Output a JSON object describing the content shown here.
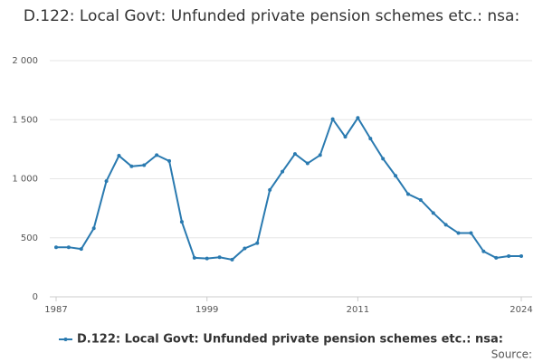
{
  "chart_data": {
    "type": "line",
    "title": "D.122: Local Govt: Unfunded private pension schemes etc.: nsa:",
    "x": [
      1987,
      1988,
      1989,
      1990,
      1991,
      1992,
      1993,
      1994,
      1995,
      1996,
      1997,
      1998,
      1999,
      2000,
      2001,
      2002,
      2003,
      2004,
      2005,
      2006,
      2007,
      2008,
      2009,
      2010,
      2011,
      2012,
      2013,
      2014,
      2015,
      2016,
      2017,
      2018,
      2019,
      2020,
      2021,
      2022,
      2023,
      2024
    ],
    "series": [
      {
        "name": "D.122: Local Govt: Unfunded private pension schemes etc.: nsa:",
        "color": "#2a7ab0",
        "values": [
          420,
          420,
          405,
          580,
          980,
          1195,
          1105,
          1115,
          1200,
          1150,
          635,
          330,
          325,
          335,
          315,
          410,
          455,
          905,
          1060,
          1210,
          1130,
          1200,
          1505,
          1355,
          1515,
          1340,
          1170,
          1025,
          870,
          820,
          710,
          610,
          540,
          540,
          385,
          330,
          345,
          345
        ]
      }
    ],
    "xlim": [
      1987,
      2024
    ],
    "xticks": [
      1987,
      1999,
      2011,
      2024
    ],
    "ylim": [
      0,
      2000
    ],
    "yticks": [
      0,
      500,
      {
        "value": 1000,
        "label": "1 000"
      },
      {
        "value": 1500,
        "label": "1 500"
      },
      {
        "value": 2000,
        "label": "2 000"
      }
    ],
    "grid": true,
    "legend": "bottom",
    "source": "Source:"
  }
}
